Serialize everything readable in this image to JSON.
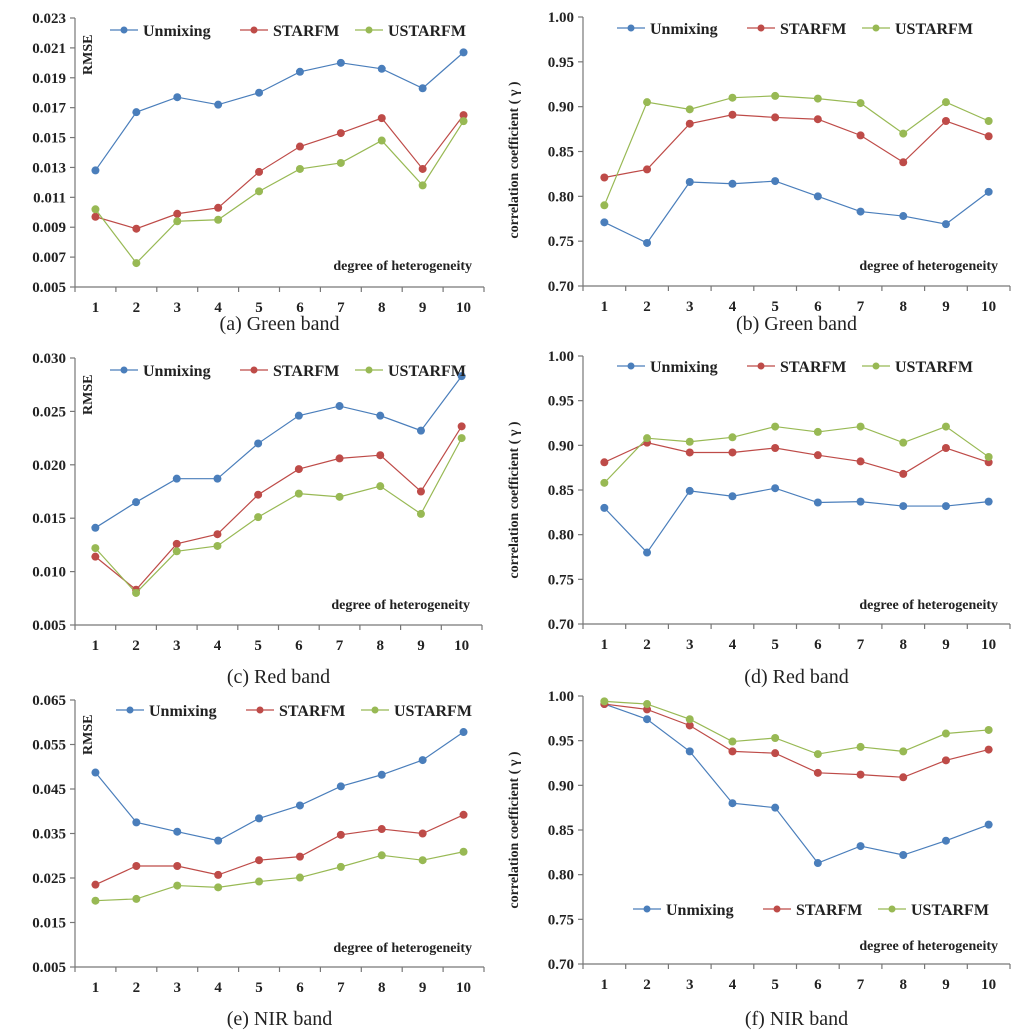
{
  "chart_data": [
    {
      "id": "a",
      "type": "line",
      "caption": "(a) Green band",
      "ylabel": "RMSE",
      "xlabel": "degree of heterogeneity",
      "categories": [
        "1",
        "2",
        "3",
        "4",
        "5",
        "6",
        "7",
        "8",
        "9",
        "10"
      ],
      "ylim": [
        0.005,
        0.023
      ],
      "yticks": [
        "0.005",
        "0.007",
        "0.009",
        "0.011",
        "0.013",
        "0.015",
        "0.017",
        "0.019",
        "0.021",
        "0.023"
      ],
      "legend_position": "top",
      "grid": false,
      "series": [
        {
          "name": "Unmixing",
          "color": "#4a7ebb",
          "values": [
            0.0128,
            0.0167,
            0.0177,
            0.0172,
            0.018,
            0.0194,
            0.02,
            0.0196,
            0.0183,
            0.0207
          ]
        },
        {
          "name": "STARFM",
          "color": "#be4b48",
          "values": [
            0.0097,
            0.0089,
            0.0099,
            0.0103,
            0.0127,
            0.0144,
            0.0153,
            0.0163,
            0.0129,
            0.0165
          ]
        },
        {
          "name": "USTARFM",
          "color": "#98b954",
          "values": [
            0.0102,
            0.0066,
            0.0094,
            0.0095,
            0.0114,
            0.0129,
            0.0133,
            0.0148,
            0.0118,
            0.0161
          ]
        }
      ]
    },
    {
      "id": "b",
      "type": "line",
      "caption": "(b) Green band",
      "ylabel": "correlation coefficient ( γ )",
      "xlabel": "degree of heterogeneity",
      "categories": [
        "1",
        "2",
        "3",
        "4",
        "5",
        "6",
        "7",
        "8",
        "9",
        "10"
      ],
      "ylim": [
        0.7,
        1.0
      ],
      "yticks": [
        "0.70",
        "0.75",
        "0.80",
        "0.85",
        "0.90",
        "0.95",
        "1.00"
      ],
      "legend_position": "top",
      "grid": false,
      "series": [
        {
          "name": "Unmixing",
          "color": "#4a7ebb",
          "values": [
            0.771,
            0.748,
            0.816,
            0.814,
            0.817,
            0.8,
            0.783,
            0.778,
            0.769,
            0.805
          ]
        },
        {
          "name": "STARFM",
          "color": "#be4b48",
          "values": [
            0.821,
            0.83,
            0.881,
            0.891,
            0.888,
            0.886,
            0.868,
            0.838,
            0.884,
            0.867
          ]
        },
        {
          "name": "USTARFM",
          "color": "#98b954",
          "values": [
            0.79,
            0.905,
            0.897,
            0.91,
            0.912,
            0.909,
            0.904,
            0.87,
            0.905,
            0.884
          ]
        }
      ]
    },
    {
      "id": "c",
      "type": "line",
      "caption": "(c) Red band",
      "ylabel": "RMSE",
      "xlabel": "degree of heterogeneity",
      "categories": [
        "1",
        "2",
        "3",
        "4",
        "5",
        "6",
        "7",
        "8",
        "9",
        "10"
      ],
      "ylim": [
        0.005,
        0.03
      ],
      "yticks": [
        "0.005",
        "0.010",
        "0.015",
        "0.020",
        "0.025",
        "0.030"
      ],
      "legend_position": "top",
      "grid": false,
      "series": [
        {
          "name": "Unmixing",
          "color": "#4a7ebb",
          "values": [
            0.0141,
            0.0165,
            0.0187,
            0.0187,
            0.022,
            0.0246,
            0.0255,
            0.0246,
            0.0232,
            0.0283
          ]
        },
        {
          "name": "STARFM",
          "color": "#be4b48",
          "values": [
            0.0114,
            0.0083,
            0.0126,
            0.0135,
            0.0172,
            0.0196,
            0.0206,
            0.0209,
            0.0175,
            0.0236
          ]
        },
        {
          "name": "USTARFM",
          "color": "#98b954",
          "values": [
            0.0122,
            0.008,
            0.0119,
            0.0124,
            0.0151,
            0.0173,
            0.017,
            0.018,
            0.0154,
            0.0225
          ]
        }
      ]
    },
    {
      "id": "d",
      "type": "line",
      "caption": "(d) Red band",
      "ylabel": "correlation coefficient ( γ )",
      "xlabel": "degree of heterogeneity",
      "categories": [
        "1",
        "2",
        "3",
        "4",
        "5",
        "6",
        "7",
        "8",
        "9",
        "10"
      ],
      "ylim": [
        0.7,
        1.0
      ],
      "yticks": [
        "0.70",
        "0.75",
        "0.80",
        "0.85",
        "0.90",
        "0.95",
        "1.00"
      ],
      "legend_position": "top",
      "grid": false,
      "series": [
        {
          "name": "Unmixing",
          "color": "#4a7ebb",
          "values": [
            0.83,
            0.78,
            0.849,
            0.843,
            0.852,
            0.836,
            0.837,
            0.832,
            0.832,
            0.837
          ]
        },
        {
          "name": "STARFM",
          "color": "#be4b48",
          "values": [
            0.881,
            0.903,
            0.892,
            0.892,
            0.897,
            0.889,
            0.882,
            0.868,
            0.897,
            0.881
          ]
        },
        {
          "name": "USTARFM",
          "color": "#98b954",
          "values": [
            0.858,
            0.908,
            0.904,
            0.909,
            0.921,
            0.915,
            0.921,
            0.903,
            0.921,
            0.887
          ]
        }
      ]
    },
    {
      "id": "e",
      "type": "line",
      "caption": "(e) NIR band",
      "ylabel": "RMSE",
      "xlabel": "degree of heterogeneity",
      "categories": [
        "1",
        "2",
        "3",
        "4",
        "5",
        "6",
        "7",
        "8",
        "9",
        "10"
      ],
      "ylim": [
        0.005,
        0.065
      ],
      "yticks": [
        "0.005",
        "0.015",
        "0.025",
        "0.035",
        "0.045",
        "0.055",
        "0.065"
      ],
      "legend_position": "top",
      "grid": false,
      "series": [
        {
          "name": "Unmixing",
          "color": "#4a7ebb",
          "values": [
            0.0487,
            0.0375,
            0.0354,
            0.0334,
            0.0384,
            0.0413,
            0.0456,
            0.0482,
            0.0515,
            0.0578
          ]
        },
        {
          "name": "STARFM",
          "color": "#be4b48",
          "values": [
            0.0235,
            0.0277,
            0.0277,
            0.0257,
            0.029,
            0.0298,
            0.0347,
            0.036,
            0.035,
            0.0392
          ]
        },
        {
          "name": "USTARFM",
          "color": "#98b954",
          "values": [
            0.0199,
            0.0203,
            0.0233,
            0.0229,
            0.0242,
            0.0251,
            0.0275,
            0.0301,
            0.029,
            0.0309
          ]
        }
      ]
    },
    {
      "id": "f",
      "type": "line",
      "caption": "(f) NIR band",
      "ylabel": "correlation coefficient ( γ )",
      "xlabel": "degree of heterogeneity",
      "categories": [
        "1",
        "2",
        "3",
        "4",
        "5",
        "6",
        "7",
        "8",
        "9",
        "10"
      ],
      "ylim": [
        0.7,
        1.0
      ],
      "yticks": [
        "0.70",
        "0.75",
        "0.80",
        "0.85",
        "0.90",
        "0.95",
        "1.00"
      ],
      "legend_position": "bottom",
      "grid": false,
      "series": [
        {
          "name": "Unmixing",
          "color": "#4a7ebb",
          "values": [
            0.991,
            0.974,
            0.938,
            0.88,
            0.875,
            0.813,
            0.832,
            0.822,
            0.838,
            0.856
          ]
        },
        {
          "name": "STARFM",
          "color": "#be4b48",
          "values": [
            0.991,
            0.985,
            0.967,
            0.938,
            0.936,
            0.914,
            0.912,
            0.909,
            0.928,
            0.94
          ]
        },
        {
          "name": "USTARFM",
          "color": "#98b954",
          "values": [
            0.994,
            0.991,
            0.974,
            0.949,
            0.953,
            0.935,
            0.943,
            0.938,
            0.958,
            0.962
          ]
        }
      ]
    }
  ]
}
